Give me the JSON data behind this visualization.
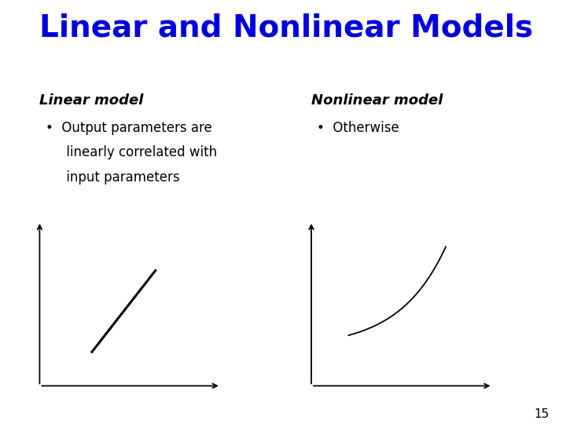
{
  "title": "Linear and Nonlinear Models",
  "title_color": "#0000DD",
  "title_fontsize": 28,
  "bg_color": "#FFFFFF",
  "left_heading": "Linear model",
  "left_bullet_lines": [
    "Output parameters are",
    "linearly correlated with",
    "input parameters"
  ],
  "right_heading": "Nonlinear model",
  "right_bullet": "Otherwise",
  "text_color": "#000000",
  "heading_fontsize": 13,
  "bullet_fontsize": 12,
  "page_number": "15",
  "axes_color": "#000000",
  "line_color_left": "#000000",
  "line_color_right": "#000000"
}
